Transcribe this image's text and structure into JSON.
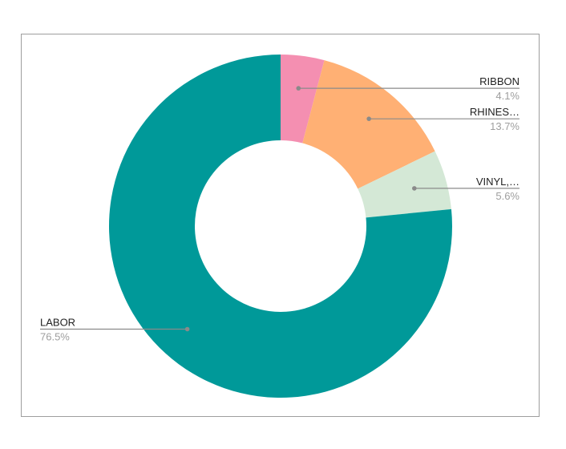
{
  "chart_data": {
    "type": "pie",
    "donut": true,
    "title": "",
    "legend": "none",
    "start_angle_deg": 0,
    "direction": "clockwise",
    "slices": [
      {
        "label": "RIBBON",
        "percent_label": "4.1%",
        "value": 4.1,
        "color": "#f48fb1",
        "label_side": "right"
      },
      {
        "label": "RHINES…",
        "percent_label": "13.7%",
        "value": 13.7,
        "color": "#ffb074",
        "label_side": "right"
      },
      {
        "label": "VINYL,…",
        "percent_label": "5.6%",
        "value": 5.6,
        "color": "#d4e8d6",
        "label_side": "right"
      },
      {
        "label": "LABOR",
        "percent_label": "76.5%",
        "value": 76.5,
        "color": "#009999",
        "label_side": "left"
      }
    ]
  }
}
